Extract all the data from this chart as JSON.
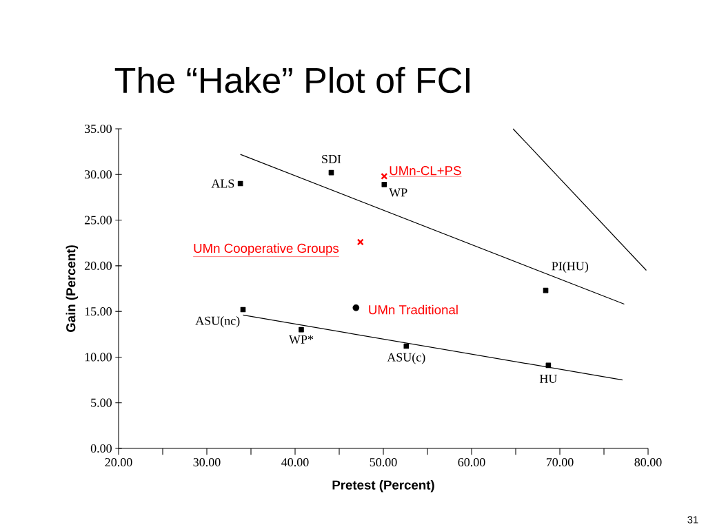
{
  "chart_data": {
    "type": "scatter",
    "title": "The “Hake” Plot of FCI",
    "xlabel": "Pretest (Percent)",
    "ylabel": "Gain (Percent)",
    "xlim": [
      20,
      80
    ],
    "ylim": [
      0,
      35
    ],
    "xticks": [
      {
        "value": 20,
        "label": "20.00"
      },
      {
        "value": 25,
        "label": null
      },
      {
        "value": 30,
        "label": "30.00"
      },
      {
        "value": 35,
        "label": null
      },
      {
        "value": 40,
        "label": "40.00"
      },
      {
        "value": 45,
        "label": null
      },
      {
        "value": 50,
        "label": "50.00"
      },
      {
        "value": 55,
        "label": null
      },
      {
        "value": 60,
        "label": "60.00"
      },
      {
        "value": 65,
        "label": null
      },
      {
        "value": 70,
        "label": "70.00"
      },
      {
        "value": 75,
        "label": null
      },
      {
        "value": 80,
        "label": "80.00"
      }
    ],
    "yticks": [
      {
        "value": 0,
        "label": "0.00"
      },
      {
        "value": 5,
        "label": "5.00"
      },
      {
        "value": 10,
        "label": "10.00"
      },
      {
        "value": 15,
        "label": "15.00"
      },
      {
        "value": 20,
        "label": "20.00"
      },
      {
        "value": 25,
        "label": "25.00"
      },
      {
        "value": 30,
        "label": "30.00"
      },
      {
        "value": 35,
        "label": "35.00"
      }
    ],
    "grid": false,
    "legend": false,
    "line_style": "solid",
    "series": [
      {
        "marker": "square",
        "color": "#000000",
        "x": [
          33.8,
          44.1,
          50.1,
          68.4,
          34.1,
          40.7,
          52.6,
          68.7
        ],
        "values": [
          29.0,
          30.2,
          28.9,
          17.3,
          15.2,
          13.0,
          11.2,
          9.1
        ]
      },
      {
        "marker": "cross",
        "name": "UMn-CL+PS",
        "color": "#ff0000",
        "x": [
          50.1
        ],
        "values": [
          29.8
        ]
      },
      {
        "marker": "cross",
        "name": "UMn Cooperative Groups",
        "color": "#ff0000",
        "x": [
          47.4
        ],
        "values": [
          22.6
        ]
      },
      {
        "marker": "circle",
        "name": "UMn Traditional",
        "color": "#000000",
        "x": [
          46.9
        ],
        "values": [
          15.4
        ]
      },
      {
        "type": "line",
        "marker": "none",
        "color": "#000000",
        "x": [
          33.8,
          77.3
        ],
        "values": [
          32.2,
          15.8
        ]
      },
      {
        "type": "line",
        "marker": "none",
        "color": "#000000",
        "x": [
          34.1,
          77.1
        ],
        "values": [
          14.6,
          7.5
        ]
      },
      {
        "type": "line",
        "marker": "none",
        "color": "#000000",
        "x": [
          64.7,
          79.8
        ],
        "values": [
          35.0,
          19.5
        ]
      }
    ],
    "annotations": [
      {
        "text": "ALS",
        "x": 33.8,
        "y": 29.0
      },
      {
        "text": "SDI",
        "x": 44.1,
        "y": 30.2
      },
      {
        "text": "WP",
        "x": 50.1,
        "y": 28.9
      },
      {
        "text": "PI(HU)",
        "x": 68.4,
        "y": 17.3
      },
      {
        "text": "ASU(nc)",
        "x": 34.1,
        "y": 15.2
      },
      {
        "text": "WP*",
        "x": 40.7,
        "y": 13.0
      },
      {
        "text": "ASU(c)",
        "x": 52.6,
        "y": 11.2
      },
      {
        "text": "HU",
        "x": 68.7,
        "y": 9.1
      },
      "31"
    ]
  }
}
